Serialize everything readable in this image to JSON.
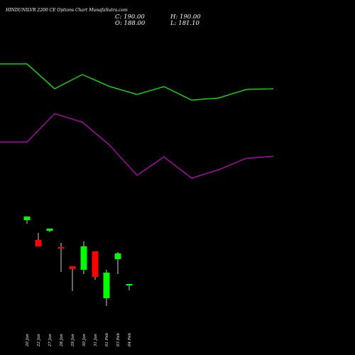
{
  "header": {
    "title": "HINDUNILVR 2200  CE Options  Chart MunafaSutra.com",
    "close": "C: 190.00",
    "high": "H: 190.00",
    "open": "O: 188.00",
    "low": "L: 181.10"
  },
  "colors": {
    "up": "#00ff00",
    "down": "#ff0000",
    "background": "#000000",
    "upper_line": "#00ff00",
    "lower_line": "#cc00cc",
    "text": "#ffffff"
  },
  "chart_data": {
    "type": "candlestick",
    "categories": [
      "20 Jan",
      "22 Jan",
      "27 Jan",
      "28 Jan",
      "29 Jan",
      "30 Jan",
      "31 Jan",
      "01 Feb",
      "03 Feb",
      "04 Feb"
    ],
    "candles": [
      {
        "date": "20 Jan",
        "open": 280,
        "high": 285,
        "low": 275,
        "close": 285,
        "dir": "up"
      },
      {
        "date": "22 Jan",
        "open": 252,
        "high": 262,
        "low": 243,
        "close": 243,
        "dir": "down"
      },
      {
        "date": "27 Jan",
        "open": 265,
        "high": 268,
        "low": 263,
        "close": 268,
        "dir": "up"
      },
      {
        "date": "28 Jan",
        "open": 242,
        "high": 248,
        "low": 207,
        "close": 240,
        "dir": "down"
      },
      {
        "date": "29 Jan",
        "open": 215,
        "high": 215,
        "low": 180,
        "close": 211,
        "dir": "down"
      },
      {
        "date": "30 Jan",
        "open": 210,
        "high": 250,
        "low": 204,
        "close": 243,
        "dir": "up"
      },
      {
        "date": "31 Jan",
        "open": 236,
        "high": 236,
        "low": 196,
        "close": 200,
        "dir": "down"
      },
      {
        "date": "01 Feb",
        "open": 170,
        "high": 210,
        "low": 159,
        "close": 206,
        "dir": "up"
      },
      {
        "date": "03 Feb",
        "open": 225,
        "high": 235,
        "low": 204,
        "close": 233,
        "dir": "up"
      },
      {
        "date": "04 Feb",
        "open": 188,
        "high": 190,
        "low": 181.1,
        "close": 190,
        "dir": "up"
      }
    ],
    "upper_line": [
      500,
      500,
      465,
      485,
      468,
      457,
      468,
      449,
      452,
      464,
      465
    ],
    "lower_line": [
      390,
      390,
      430,
      418,
      385,
      343,
      369,
      339,
      351,
      367,
      370
    ],
    "ylim": [
      140,
      550
    ]
  }
}
